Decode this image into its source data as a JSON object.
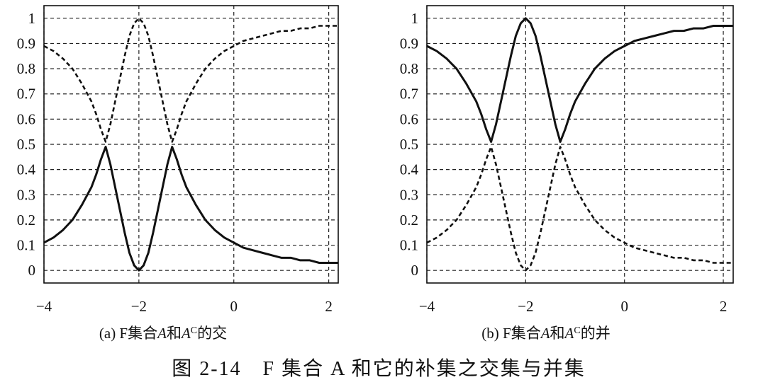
{
  "figure_caption": "图 2-14　F 集合 A 和它的补集之交集与并集",
  "chart_data": [
    {
      "type": "line",
      "caption": [
        "(a) F集合",
        "A",
        "和",
        "A",
        "C",
        "的交"
      ],
      "x": [
        -4,
        -3.8,
        -3.6,
        -3.4,
        -3.2,
        -3,
        -2.9,
        -2.8,
        -2.7,
        -2.6,
        -2.5,
        -2.4,
        -2.3,
        -2.2,
        -2.1,
        -2,
        -1.9,
        -1.8,
        -1.7,
        -1.6,
        -1.5,
        -1.4,
        -1.3,
        -1.2,
        -1.1,
        -1,
        -0.8,
        -0.6,
        -0.4,
        -0.2,
        0,
        0.2,
        0.4,
        0.6,
        0.8,
        1,
        1.2,
        1.4,
        1.6,
        1.8,
        2,
        2.2
      ],
      "series": [
        {
          "color": "#111111",
          "dashed": false,
          "values": [
            0.11,
            0.13,
            0.16,
            0.2,
            0.26,
            0.33,
            0.38,
            0.44,
            0.49,
            0.42,
            0.33,
            0.24,
            0.15,
            0.07,
            0.02,
            0,
            0.02,
            0.07,
            0.15,
            0.24,
            0.33,
            0.42,
            0.49,
            0.44,
            0.38,
            0.33,
            0.26,
            0.2,
            0.16,
            0.13,
            0.11,
            0.09,
            0.08,
            0.07,
            0.06,
            0.05,
            0.05,
            0.04,
            0.04,
            0.03,
            0.03,
            0.03
          ]
        },
        {
          "color": "#111111",
          "dashed": true,
          "values": [
            0.89,
            0.87,
            0.84,
            0.8,
            0.74,
            0.67,
            0.62,
            0.56,
            0.51,
            0.58,
            0.67,
            0.76,
            0.85,
            0.93,
            0.98,
            1,
            0.98,
            0.93,
            0.85,
            0.76,
            0.67,
            0.58,
            0.51,
            0.56,
            0.62,
            0.67,
            0.74,
            0.8,
            0.84,
            0.87,
            0.89,
            0.91,
            0.92,
            0.93,
            0.94,
            0.95,
            0.95,
            0.96,
            0.96,
            0.97,
            0.97,
            0.97
          ]
        }
      ],
      "xlim": [
        -4,
        2.2
      ],
      "ylim": [
        -0.05,
        1.05
      ],
      "xticks": [
        {
          "value": -4,
          "label": "−4"
        },
        {
          "value": -2,
          "label": "−2"
        },
        0,
        2
      ],
      "yticks": [
        0,
        0.1,
        0.2,
        0.3,
        0.4,
        0.5,
        0.6,
        0.7,
        0.8,
        0.9,
        1
      ],
      "grid": true
    },
    {
      "type": "line",
      "caption": [
        "(b) F集合",
        "A",
        "和",
        "A",
        "C",
        "的并"
      ],
      "x": [
        -4,
        -3.8,
        -3.6,
        -3.4,
        -3.2,
        -3,
        -2.9,
        -2.8,
        -2.7,
        -2.6,
        -2.5,
        -2.4,
        -2.3,
        -2.2,
        -2.1,
        -2,
        -1.9,
        -1.8,
        -1.7,
        -1.6,
        -1.5,
        -1.4,
        -1.3,
        -1.2,
        -1.1,
        -1,
        -0.8,
        -0.6,
        -0.4,
        -0.2,
        0,
        0.2,
        0.4,
        0.6,
        0.8,
        1,
        1.2,
        1.4,
        1.6,
        1.8,
        2,
        2.2
      ],
      "series": [
        {
          "color": "#111111",
          "dashed": false,
          "values": [
            0.89,
            0.87,
            0.84,
            0.8,
            0.74,
            0.67,
            0.62,
            0.56,
            0.51,
            0.58,
            0.67,
            0.76,
            0.85,
            0.93,
            0.98,
            1,
            0.98,
            0.93,
            0.85,
            0.76,
            0.67,
            0.58,
            0.51,
            0.56,
            0.62,
            0.67,
            0.74,
            0.8,
            0.84,
            0.87,
            0.89,
            0.91,
            0.92,
            0.93,
            0.94,
            0.95,
            0.95,
            0.96,
            0.96,
            0.97,
            0.97,
            0.97
          ]
        },
        {
          "color": "#111111",
          "dashed": true,
          "values": [
            0.11,
            0.13,
            0.16,
            0.2,
            0.26,
            0.33,
            0.38,
            0.44,
            0.49,
            0.42,
            0.33,
            0.24,
            0.15,
            0.07,
            0.02,
            0,
            0.02,
            0.07,
            0.15,
            0.24,
            0.33,
            0.42,
            0.49,
            0.44,
            0.38,
            0.33,
            0.26,
            0.2,
            0.16,
            0.13,
            0.11,
            0.09,
            0.08,
            0.07,
            0.06,
            0.05,
            0.05,
            0.04,
            0.04,
            0.03,
            0.03,
            0.03
          ]
        }
      ],
      "xlim": [
        -4,
        2.2
      ],
      "ylim": [
        -0.05,
        1.05
      ],
      "xticks": [
        {
          "value": -4,
          "label": "−4"
        },
        {
          "value": -2,
          "label": "−2"
        },
        0,
        2
      ],
      "yticks": [
        0,
        0.1,
        0.2,
        0.3,
        0.4,
        0.5,
        0.6,
        0.7,
        0.8,
        0.9,
        1
      ],
      "grid": true
    }
  ]
}
